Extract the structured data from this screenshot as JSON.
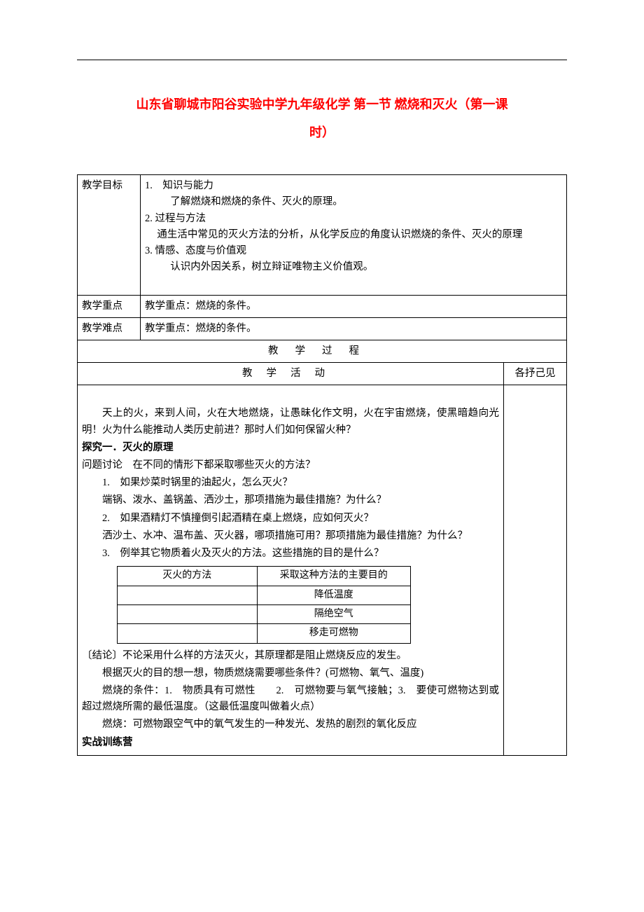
{
  "colors": {
    "title_accent": "#ff0000",
    "text": "#000000",
    "border": "#000000",
    "background": "#ffffff"
  },
  "typography": {
    "title_fontsize": 18,
    "body_fontsize": 14.5,
    "title_weight": "bold"
  },
  "title": {
    "line1": "山东省聊城市阳谷实验中学九年级化学 第一节 燃烧和灭火（第一课",
    "line2": "时）"
  },
  "table": {
    "labels": {
      "objective": "教学目标",
      "keypoint": "教学重点",
      "difficulty": "教学难点",
      "process": "教学过程",
      "activity": "教学活动",
      "comment": "各抒己见"
    },
    "objective": {
      "item1_head": "1.　知识与能力",
      "item1_body": "了解燃烧和燃烧的条件、灭火的原理。",
      "item2_head": "2. 过程与方法",
      "item2_body": "通生活中常见的灭火方法的分析，从化学反应的角度认识燃烧的条件、灭火的原理",
      "item3_head": "3. 情感、态度与价值观",
      "item3_body": "认识内外因关系，树立辩证唯物主义价值观。"
    },
    "keypoint_text": "教学重点：燃烧的条件。",
    "difficulty_text": "教学重点：燃烧的条件。"
  },
  "body": {
    "intro": "天上的火，来到人间，火在大地燃烧，让愚昧化作文明，火在宇宙燃烧，使黑暗趋向光明！火为什么能推动人类历史前进？那时人们如何保留火种？",
    "section1_title": "探究一．灭火的原理",
    "discussion_lead": "问题讨论　在不同的情形下都采取哪些灭火的方法？",
    "q1": "1.　如果炒菜时锅里的油起火，怎么灭火？",
    "q1_opts": "端锅、泼水、盖锅盖、洒沙土，那项措施为最佳措施？为什么？",
    "q2": "2.　如果酒精灯不慎撞倒引起酒精在桌上燃烧，应如何灭火？",
    "q2_opts": "洒沙土、水冲、温布盖、灭火器，哪项措施可用？那项措施为最佳措施？为什么？",
    "q3": "3.　例举其它物质着火及灭火的方法。这些措施的目的是什么？",
    "inner_table": {
      "head_left": "灭火的方法",
      "head_right": "采取这种方法的主要目的",
      "rows": [
        {
          "method": "",
          "purpose": "降低温度"
        },
        {
          "method": "",
          "purpose": "隔绝空气"
        },
        {
          "method": "",
          "purpose": "移走可燃物"
        }
      ]
    },
    "conclusion": "〔结论〕不论采用什么样的方法灭火，其原理都是阻止燃烧反应的发生。",
    "think": "根据灭火的目的想一想，物质燃烧需要哪些条件？(可燃物、氧气、温度)",
    "conditions": "燃烧的条件：1.　物质具有可燃性　　2.　可燃物要与氧气接触；3.　要使可燃物达到或超过燃烧所需的最低温度。（这最低温度叫做着火点）",
    "burning_def": "燃烧：可燃物跟空气中的氧气发生的一种发光、发热的剧烈的氧化反应",
    "practice": "实战训练营"
  }
}
